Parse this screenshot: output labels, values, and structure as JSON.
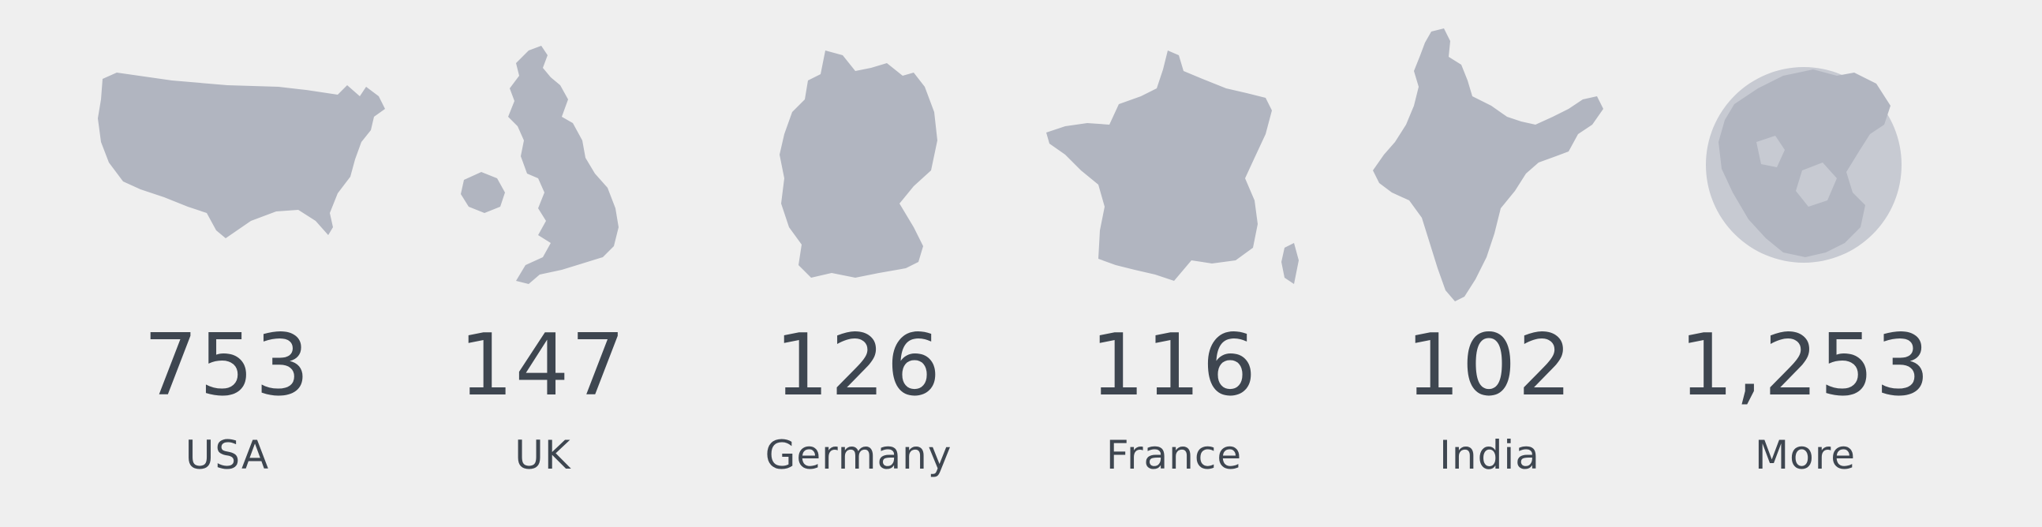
{
  "colors": {
    "background": "#efefef",
    "map_fill": "#b1b5c0",
    "text": "#3e4650"
  },
  "countries": [
    {
      "count": "753",
      "label": "USA",
      "icon": "usa-map-icon"
    },
    {
      "count": "147",
      "label": "UK",
      "icon": "uk-map-icon"
    },
    {
      "count": "126",
      "label": "Germany",
      "icon": "germany-map-icon"
    },
    {
      "count": "116",
      "label": "France",
      "icon": "france-map-icon"
    },
    {
      "count": "102",
      "label": "India",
      "icon": "india-map-icon"
    },
    {
      "count": "1,253",
      "label": "More",
      "icon": "globe-icon"
    }
  ]
}
